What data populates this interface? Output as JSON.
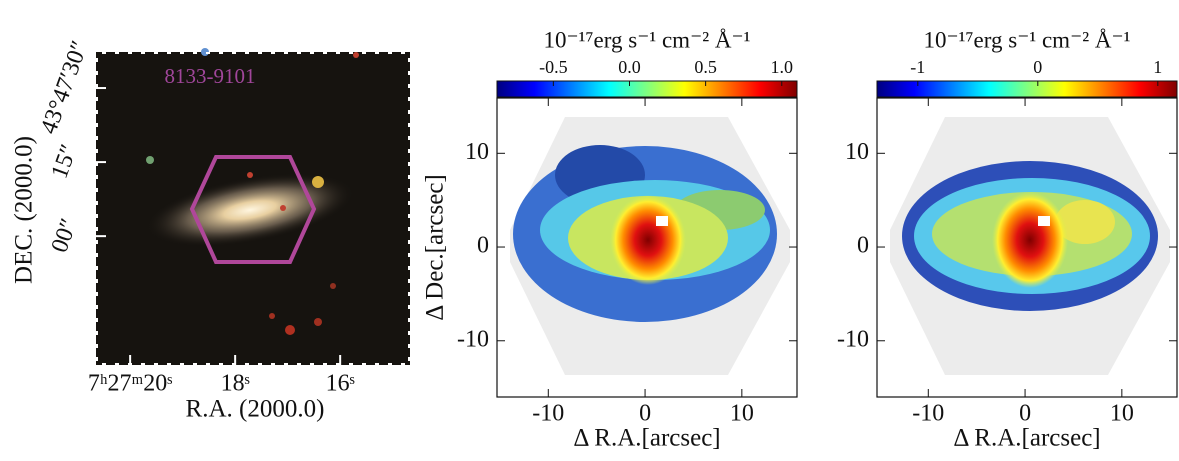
{
  "chart_data": [
    {
      "type": "image",
      "label": "8133-9101",
      "xlabel": "R.A. (2000.0)",
      "ylabel": "DEC. (2000.0)",
      "xlim": [
        20.65,
        14.67
      ],
      "xticks": [
        {
          "value": 20,
          "label": "7ʰ27ᵐ20ˢ"
        },
        {
          "value": 18,
          "label": "18ˢ"
        },
        {
          "value": 16,
          "label": "16ˢ"
        }
      ],
      "ylim": [
        -26.1,
        37.3
      ],
      "yticks": [
        {
          "value": 30,
          "label": "43°47′30″"
        },
        {
          "value": 15,
          "label": "15″"
        },
        {
          "value": 0,
          "label": "00″"
        }
      ]
    },
    {
      "type": "heatmap",
      "colorbar_label": "10⁻¹⁷erg s⁻¹ cm⁻² Å⁻¹",
      "colormap": "jet",
      "clim": [
        -0.87,
        1.1
      ],
      "cticks": [
        -0.5,
        {
          "value": 0,
          "label": "0.0"
        },
        0.5,
        {
          "value": 1,
          "label": "1.0"
        }
      ],
      "xlim": [
        -15.3,
        15.7
      ],
      "xticks": [
        -10,
        0,
        10
      ],
      "ylim": [
        -16,
        15.9
      ],
      "yticks": [
        -10,
        0,
        10
      ],
      "xlabel": "Δ R.A.[arcsec]",
      "ylabel": "Δ Dec.[arcsec]"
    },
    {
      "type": "heatmap",
      "colorbar_label": "10⁻¹⁷erg s⁻¹ cm⁻² Å⁻¹",
      "colormap": "jet",
      "clim": [
        -1.34,
        1.16
      ],
      "cticks": [
        -1,
        0,
        1
      ],
      "xlim": [
        -15.3,
        15.7
      ],
      "xticks": [
        -10,
        0,
        10
      ],
      "ylim": [
        -16,
        15.9
      ],
      "yticks": [
        -10,
        0,
        10
      ],
      "xlabel": "Δ R.A.[arcsec]"
    }
  ]
}
